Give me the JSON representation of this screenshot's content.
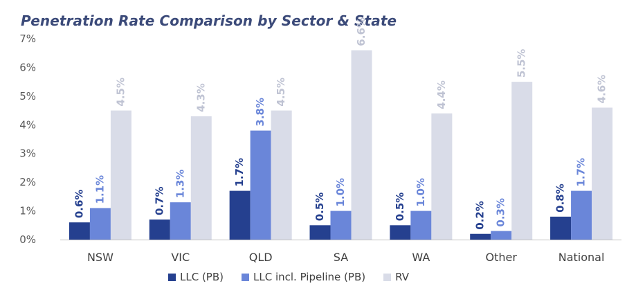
{
  "chart_data": {
    "type": "bar",
    "title": "Penetration Rate Comparison by Sector & State",
    "categories": [
      "NSW",
      "VIC",
      "QLD",
      "SA",
      "WA",
      "Other",
      "National"
    ],
    "series": [
      {
        "name": "LLC (PB)",
        "color": "#25408f",
        "labelColor": "#25408f",
        "values": [
          0.6,
          0.7,
          1.7,
          0.5,
          0.5,
          0.2,
          0.8
        ],
        "labels": [
          "0.6%",
          "0.7%",
          "1.7%",
          "0.5%",
          "0.5%",
          "0.2%",
          "0.8%"
        ]
      },
      {
        "name": "LLC incl. Pipeline (PB)",
        "color": "#6a86d9",
        "labelColor": "#6a86d9",
        "values": [
          1.1,
          1.3,
          3.8,
          1.0,
          1.0,
          0.3,
          1.7
        ],
        "labels": [
          "1.1%",
          "1.3%",
          "3.8%",
          "1.0%",
          "1.0%",
          "0.3%",
          "1.7%"
        ]
      },
      {
        "name": "RV",
        "color": "#d9dce8",
        "labelColor": "#bfc3d3",
        "values": [
          4.5,
          4.3,
          4.5,
          6.6,
          4.4,
          5.5,
          4.6
        ],
        "labels": [
          "4.5%",
          "4.3%",
          "4.5%",
          "6.6%",
          "4.4%",
          "5.5%",
          "4.6%"
        ]
      }
    ],
    "yticks": [
      "0%",
      "1%",
      "2%",
      "3%",
      "4%",
      "5%",
      "6%",
      "7%"
    ],
    "ylim": [
      0,
      7
    ],
    "xlabel": "",
    "ylabel": "",
    "legend_position": "bottom",
    "grid": false
  }
}
